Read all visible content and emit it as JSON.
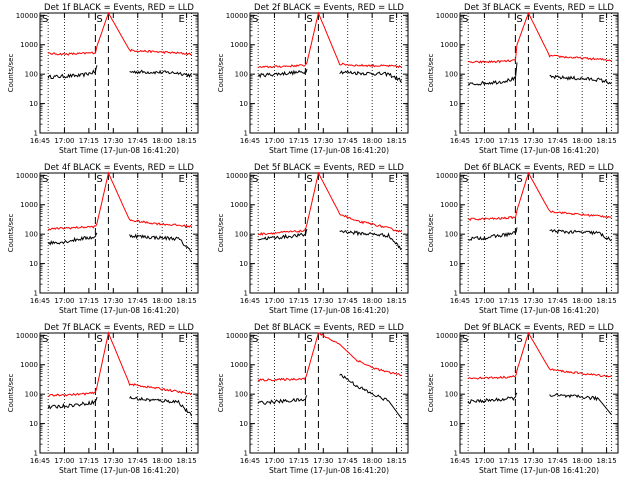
{
  "colors": {
    "events": "#000000",
    "lld": "#ff0000",
    "axes": "#000000",
    "background": "#ffffff"
  },
  "common": {
    "ylabel": "Counts/sec",
    "xlabel": "Start Time (17-Jun-08 16:41:20)",
    "x_ticks": [
      "16:45",
      "17:00",
      "17:15",
      "17:30",
      "17:45",
      "18:00",
      "18:15"
    ],
    "y_ticks": [
      "1",
      "10",
      "100",
      "1000",
      "10000"
    ],
    "markers": {
      "S": "S",
      "E": "E"
    },
    "xlim": [
      "16:45",
      "18:22"
    ],
    "ylim": [
      1,
      12000
    ],
    "y_scale": "log"
  },
  "chart_data": [
    {
      "type": "line",
      "title": "Det 1f BLACK = Events, RED = LLD",
      "x": [
        "16:50",
        "17:00",
        "17:10",
        "17:19",
        "17:20",
        "17:27",
        "17:40",
        "17:50",
        "18:00",
        "18:10",
        "18:18"
      ],
      "series": [
        {
          "name": "Events",
          "values": [
            80,
            85,
            90,
            120,
            200,
            null,
            120,
            118,
            115,
            110,
            90
          ]
        },
        {
          "name": "LLD",
          "values": [
            500,
            480,
            500,
            540,
            900,
            12000,
            650,
            600,
            560,
            520,
            480
          ]
        }
      ]
    },
    {
      "type": "line",
      "title": "Det 2f BLACK = Events, RED = LLD",
      "x": [
        "16:50",
        "17:00",
        "17:10",
        "17:19",
        "17:20",
        "17:27",
        "17:40",
        "17:50",
        "18:00",
        "18:10",
        "18:18"
      ],
      "series": [
        {
          "name": "Events",
          "values": [
            90,
            100,
            110,
            120,
            150,
            null,
            120,
            110,
            105,
            100,
            60
          ]
        },
        {
          "name": "LLD",
          "values": [
            170,
            180,
            190,
            200,
            250,
            12000,
            220,
            200,
            195,
            190,
            180
          ]
        }
      ]
    },
    {
      "type": "line",
      "title": "Det 3f BLACK = Events, RED = LLD",
      "x": [
        "16:50",
        "17:00",
        "17:10",
        "17:19",
        "17:20",
        "17:27",
        "17:40",
        "17:50",
        "18:00",
        "18:10",
        "18:18"
      ],
      "series": [
        {
          "name": "Events",
          "values": [
            45,
            50,
            55,
            70,
            250,
            null,
            80,
            75,
            70,
            65,
            50
          ]
        },
        {
          "name": "LLD",
          "values": [
            250,
            260,
            270,
            290,
            1000,
            12000,
            420,
            380,
            350,
            320,
            300
          ]
        }
      ]
    },
    {
      "type": "line",
      "title": "Det 4f BLACK = Events, RED = LLD",
      "x": [
        "16:50",
        "17:00",
        "17:10",
        "17:19",
        "17:20",
        "17:27",
        "17:40",
        "17:50",
        "18:00",
        "18:10",
        "18:18"
      ],
      "series": [
        {
          "name": "Events",
          "values": [
            50,
            55,
            70,
            80,
            110,
            null,
            90,
            80,
            75,
            70,
            25
          ]
        },
        {
          "name": "LLD",
          "values": [
            150,
            160,
            170,
            180,
            230,
            12000,
            300,
            250,
            220,
            200,
            180
          ]
        }
      ]
    },
    {
      "type": "line",
      "title": "Det 5f BLACK = Events, RED = LLD",
      "x": [
        "16:50",
        "17:00",
        "17:10",
        "17:19",
        "17:20",
        "17:27",
        "17:40",
        "17:50",
        "18:00",
        "18:10",
        "18:18"
      ],
      "series": [
        {
          "name": "Events",
          "values": [
            70,
            75,
            85,
            95,
            150,
            null,
            130,
            110,
            100,
            90,
            30
          ]
        },
        {
          "name": "LLD",
          "values": [
            100,
            110,
            120,
            130,
            220,
            12000,
            500,
            280,
            220,
            160,
            120
          ]
        }
      ]
    },
    {
      "type": "line",
      "title": "Det 6f BLACK = Events, RED = LLD",
      "x": [
        "16:50",
        "17:00",
        "17:10",
        "17:19",
        "17:20",
        "17:27",
        "17:40",
        "17:50",
        "18:00",
        "18:10",
        "18:18"
      ],
      "series": [
        {
          "name": "Events",
          "values": [
            70,
            75,
            90,
            110,
            170,
            null,
            130,
            120,
            115,
            110,
            60
          ]
        },
        {
          "name": "LLD",
          "values": [
            320,
            330,
            340,
            380,
            650,
            12000,
            600,
            520,
            460,
            420,
            380
          ]
        }
      ]
    },
    {
      "type": "line",
      "title": "Det 7f BLACK = Events, RED = LLD",
      "x": [
        "16:50",
        "17:00",
        "17:10",
        "17:19",
        "17:20",
        "17:27",
        "17:40",
        "17:50",
        "18:00",
        "18:10",
        "18:18"
      ],
      "series": [
        {
          "name": "Events",
          "values": [
            35,
            40,
            45,
            55,
            80,
            null,
            75,
            65,
            60,
            55,
            18
          ]
        },
        {
          "name": "LLD",
          "values": [
            90,
            95,
            100,
            110,
            180,
            12000,
            220,
            180,
            150,
            120,
            100
          ]
        }
      ]
    },
    {
      "type": "line",
      "title": "Det 8f BLACK = Events, RED = LLD",
      "x": [
        "16:50",
        "17:00",
        "17:10",
        "17:19",
        "17:20",
        "17:27",
        "17:40",
        "17:50",
        "18:00",
        "18:10",
        "18:18"
      ],
      "series": [
        {
          "name": "Events",
          "values": [
            50,
            55,
            60,
            65,
            90,
            null,
            500,
            200,
            100,
            60,
            15
          ]
        },
        {
          "name": "LLD",
          "values": [
            300,
            310,
            320,
            340,
            500,
            12000,
            5000,
            1500,
            800,
            550,
            450
          ]
        }
      ]
    },
    {
      "type": "line",
      "title": "Det 9f BLACK = Events, RED = LLD",
      "x": [
        "16:50",
        "17:00",
        "17:10",
        "17:19",
        "17:20",
        "17:27",
        "17:40",
        "17:50",
        "18:00",
        "18:10",
        "18:18"
      ],
      "series": [
        {
          "name": "Events",
          "values": [
            55,
            60,
            65,
            75,
            110,
            null,
            95,
            85,
            80,
            70,
            20
          ]
        },
        {
          "name": "LLD",
          "values": [
            350,
            360,
            370,
            400,
            650,
            12000,
            700,
            580,
            500,
            440,
            400
          ]
        }
      ]
    }
  ]
}
